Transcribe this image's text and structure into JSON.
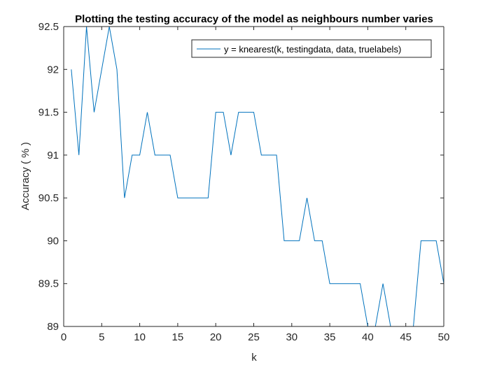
{
  "chart_data": {
    "type": "line",
    "title": "Plotting the testing accuracy of the model as neighbours number varies",
    "xlabel": "k",
    "ylabel": "Accuracy ( % )",
    "xlim": [
      0,
      50
    ],
    "ylim": [
      89,
      92.5
    ],
    "xticks": [
      0,
      5,
      10,
      15,
      20,
      25,
      30,
      35,
      40,
      45,
      50
    ],
    "yticks": [
      89,
      89.5,
      90,
      90.5,
      91,
      91.5,
      92,
      92.5
    ],
    "xtick_labels": [
      "0",
      "5",
      "10",
      "15",
      "20",
      "25",
      "30",
      "35",
      "40",
      "45",
      "50"
    ],
    "ytick_labels": [
      "89",
      "89.5",
      "90",
      "90.5",
      "91",
      "91.5",
      "92",
      "92.5"
    ],
    "grid": false,
    "legend_position": "top-right",
    "series": [
      {
        "name": "y = knearest(k, testingdata, data, truelabels)",
        "color": "#0072BD",
        "x": [
          1,
          2,
          3,
          4,
          5,
          6,
          7,
          8,
          9,
          10,
          11,
          12,
          13,
          14,
          15,
          16,
          17,
          18,
          19,
          20,
          21,
          22,
          23,
          24,
          25,
          26,
          27,
          28,
          29,
          30,
          31,
          32,
          33,
          34,
          35,
          36,
          37,
          38,
          39,
          40,
          41,
          42,
          43,
          44,
          45,
          46,
          47,
          48,
          49,
          50
        ],
        "y": [
          92,
          91,
          92.5,
          91.5,
          92,
          92.5,
          92,
          90.5,
          91,
          91,
          91.5,
          91,
          91,
          91,
          90.5,
          90.5,
          90.5,
          90.5,
          90.5,
          91.5,
          91.5,
          91,
          91.5,
          91.5,
          91.5,
          91,
          91,
          91,
          90,
          90,
          90,
          90.5,
          90,
          90,
          89.5,
          89.5,
          89.5,
          89.5,
          89.5,
          89,
          89,
          89.5,
          89,
          89,
          89,
          89,
          90,
          90,
          90,
          89.5
        ]
      }
    ]
  }
}
